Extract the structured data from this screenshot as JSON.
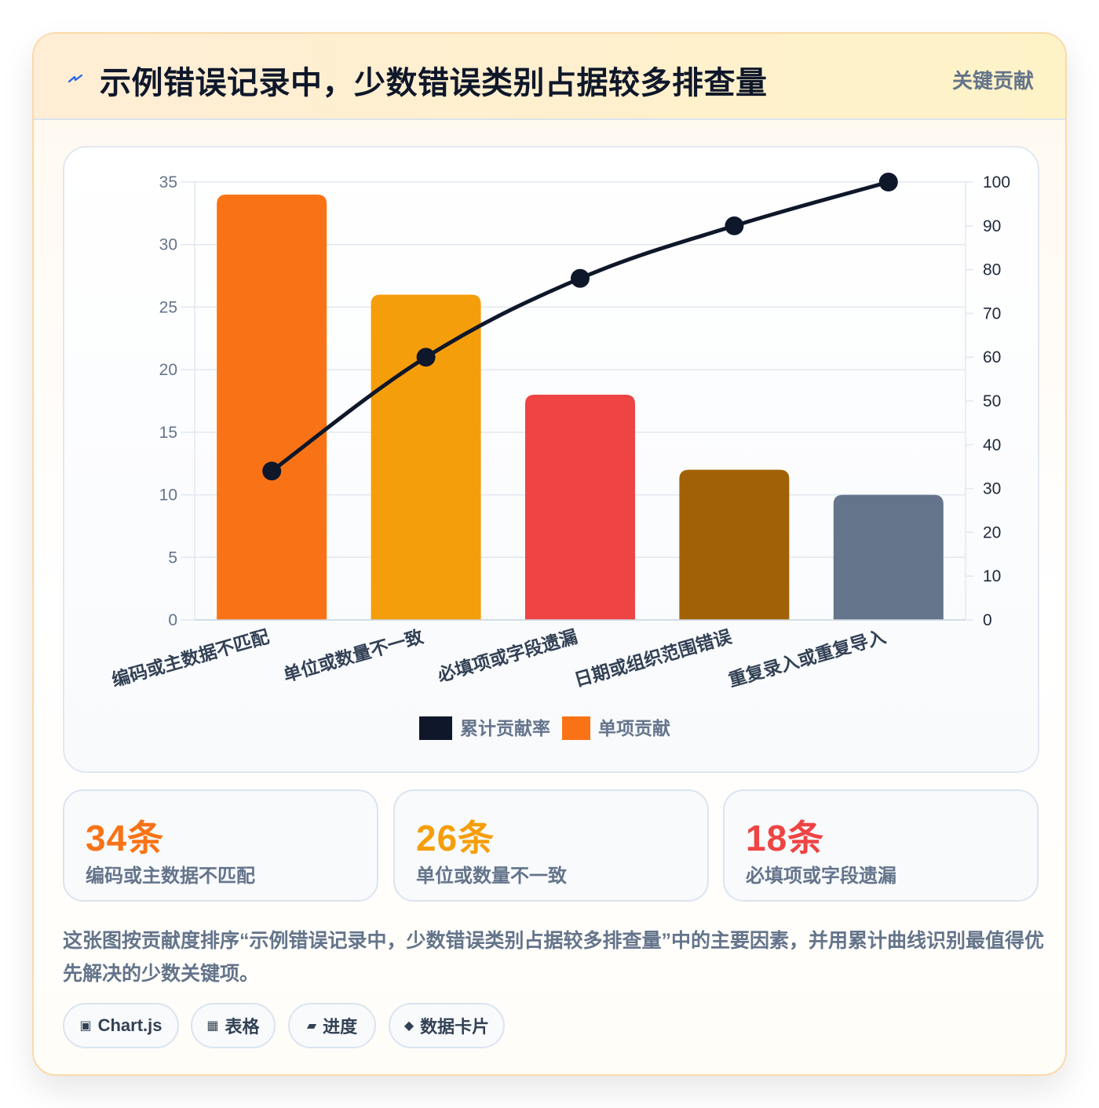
{
  "header": {
    "title": "示例错误记录中，少数错误类别占据较多排查量",
    "tag": "关键贡献",
    "icon": "lightning-icon"
  },
  "chart_data": {
    "type": "bar",
    "categories": [
      "编码或主数据不匹配",
      "单位或数量不一致",
      "必填项或字段遗漏",
      "日期或组织范围错误",
      "重复录入或重复导入"
    ],
    "series": [
      {
        "name": "单项贡献",
        "type": "bar",
        "axis": "left",
        "values": [
          34,
          26,
          18,
          12,
          10
        ],
        "colors": [
          "#f97316",
          "#f59e0b",
          "#ef4444",
          "#a16207",
          "#64748b"
        ]
      },
      {
        "name": "累计贡献率",
        "type": "line",
        "axis": "right",
        "values": [
          34,
          60,
          78,
          90,
          100
        ],
        "color": "#0f172a"
      }
    ],
    "y_left": {
      "range": [
        0,
        35
      ],
      "ticks": [
        0,
        5,
        10,
        15,
        20,
        25,
        30,
        35
      ]
    },
    "y_right": {
      "range": [
        0,
        100
      ],
      "ticks": [
        0,
        10,
        20,
        30,
        40,
        50,
        60,
        70,
        80,
        90,
        100
      ]
    },
    "grid": true,
    "legend": {
      "placement": "bottom",
      "order": [
        "累计贡献率",
        "单项贡献"
      ]
    }
  },
  "stats": [
    {
      "value": "34条",
      "label": "编码或主数据不匹配",
      "color": "#f97316"
    },
    {
      "value": "26条",
      "label": "单位或数量不一致",
      "color": "#f59e0b"
    },
    {
      "value": "18条",
      "label": "必填项或字段遗漏",
      "color": "#ef4444"
    }
  ],
  "description": "这张图按贡献度排序“示例错误记录中，少数错误类别占据较多排查量”中的主要因素，并用累计曲线识别最值得优先解决的少数关键项。",
  "chips": [
    {
      "icon": "▣",
      "label": "Chart.js"
    },
    {
      "icon": "▦",
      "label": "表格"
    },
    {
      "icon": "▰",
      "label": "进度"
    },
    {
      "icon": "◆",
      "label": "数据卡片"
    }
  ]
}
